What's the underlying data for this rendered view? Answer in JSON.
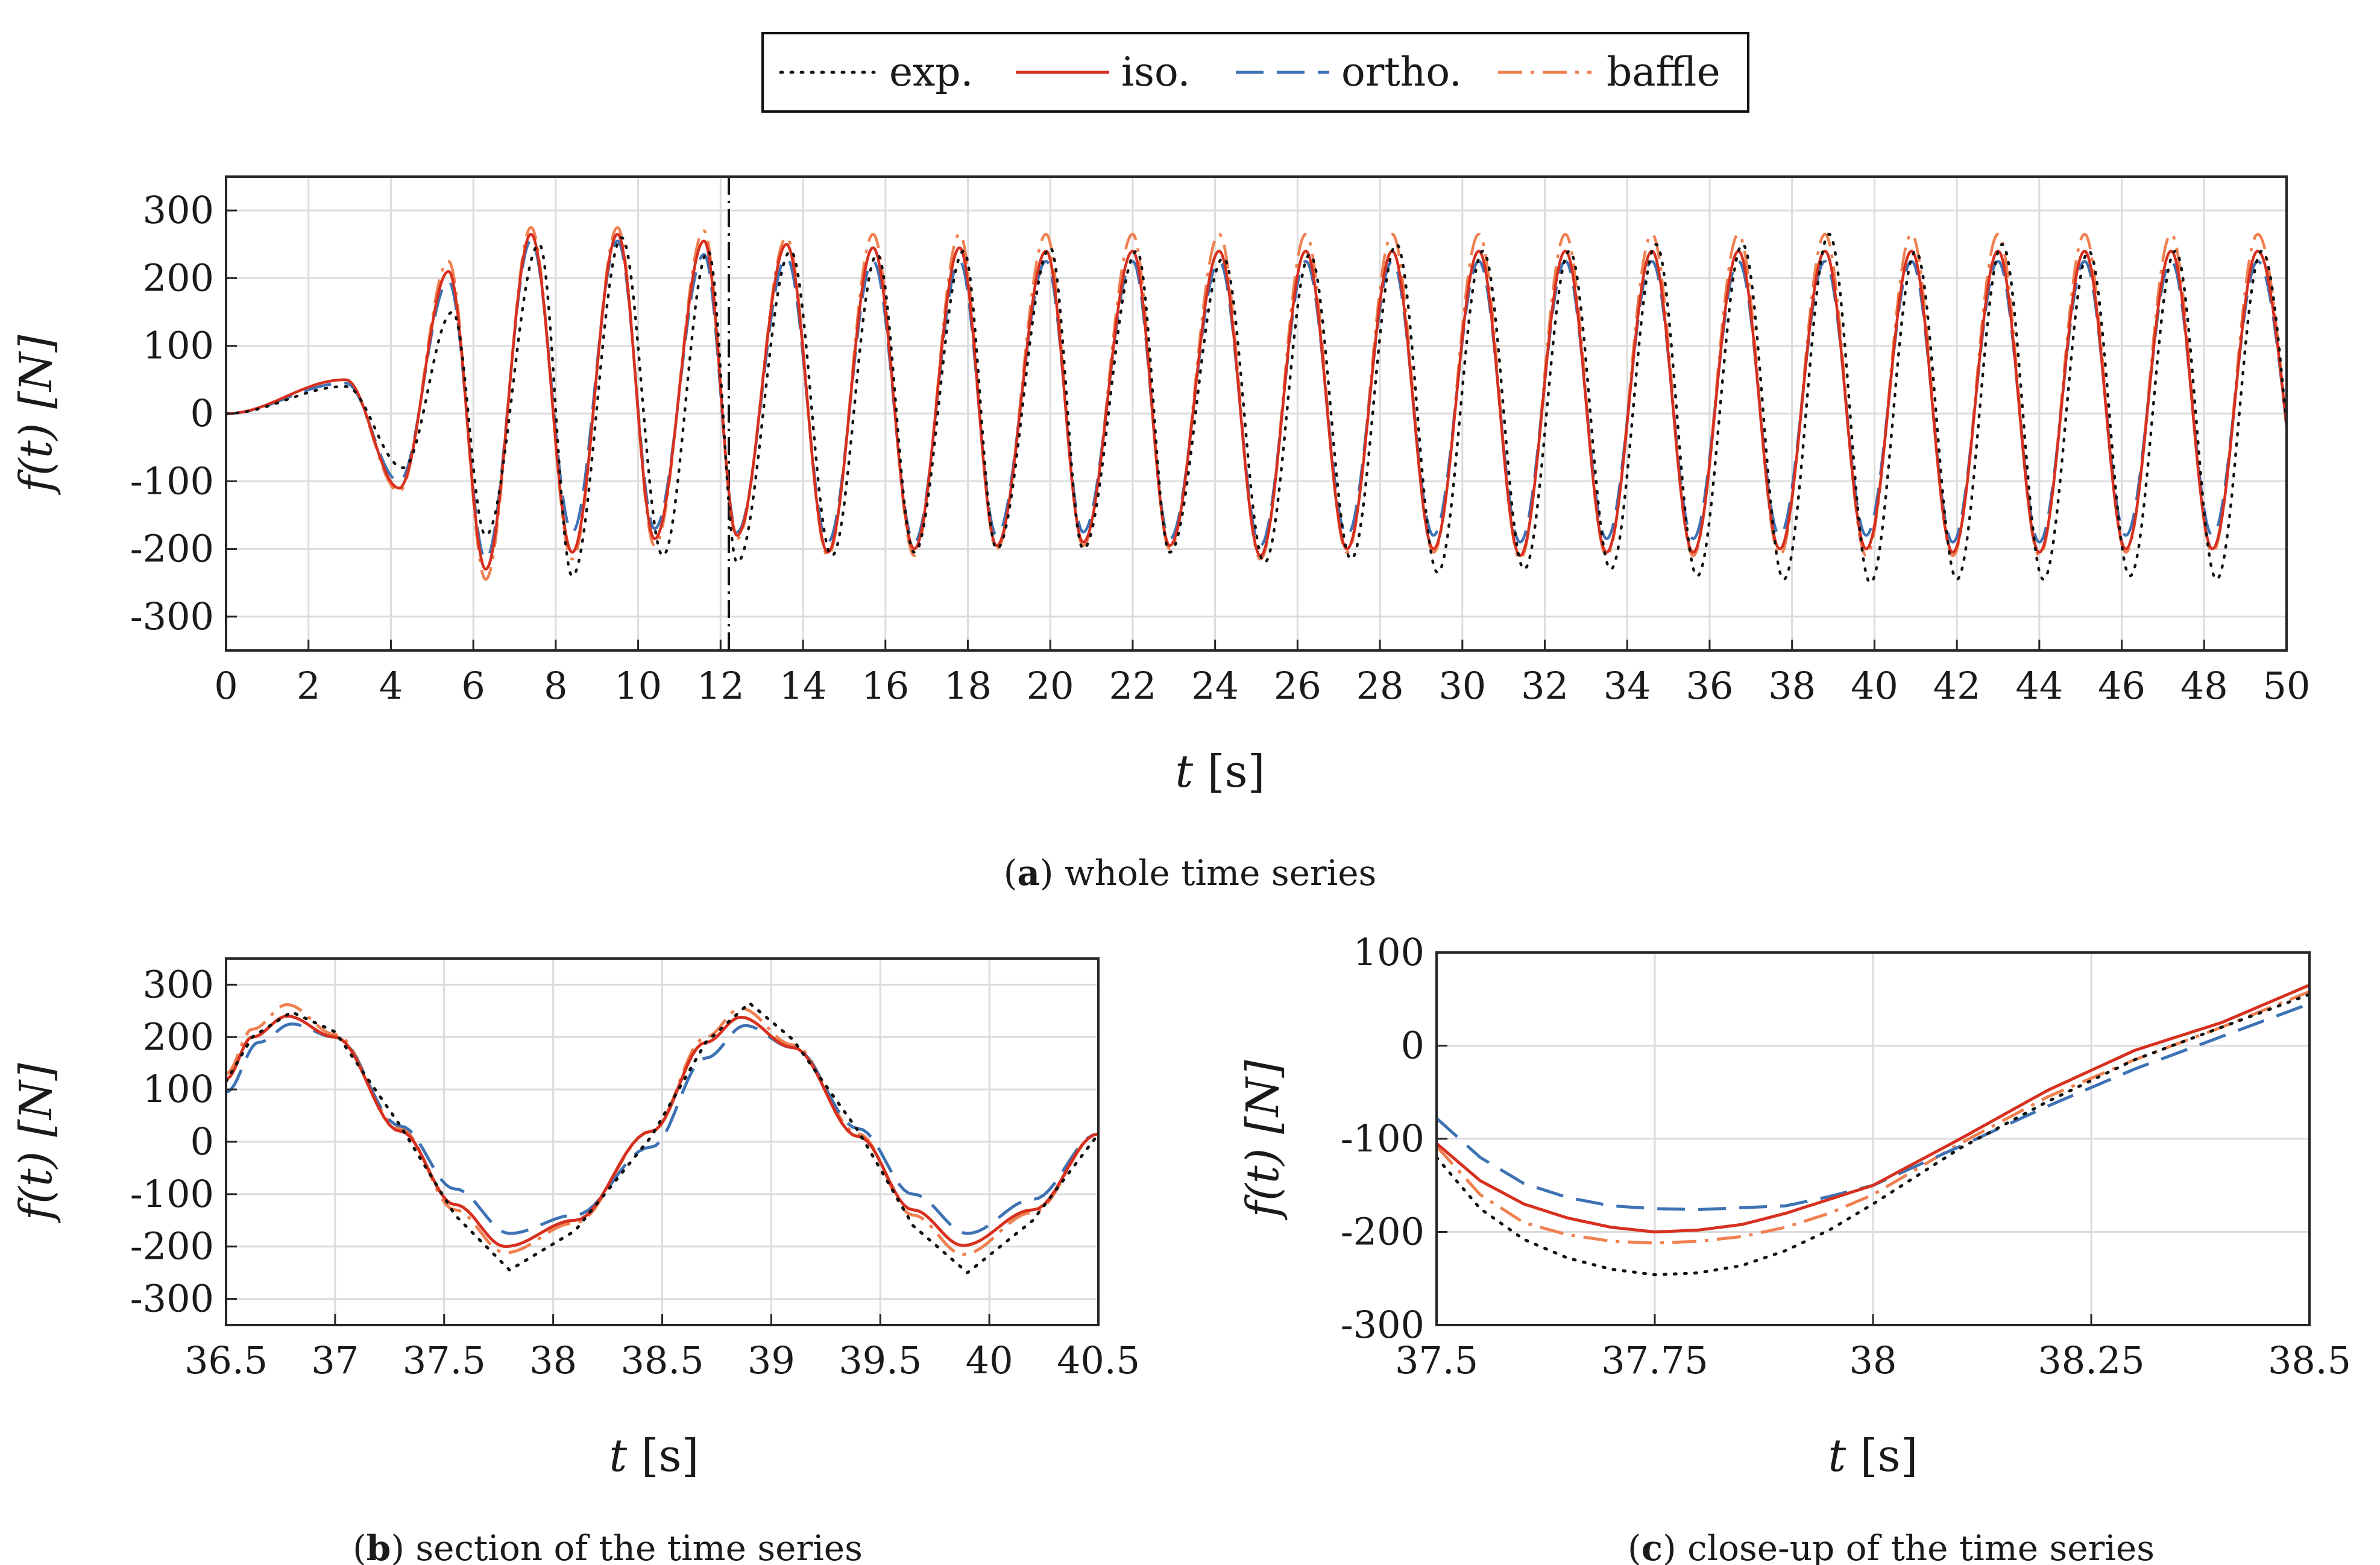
{
  "legend": {
    "entries": [
      {
        "key": "exp",
        "label": "exp.",
        "color": "#111111",
        "dash": "3 14"
      },
      {
        "key": "iso",
        "label": "iso.",
        "color": "#d7301f",
        "dash": ""
      },
      {
        "key": "ortho",
        "label": "ortho.",
        "color": "#3d72b4",
        "dash": "46 22"
      },
      {
        "key": "baffle",
        "label": "baffle",
        "color": "#f08050",
        "dash": "40 14 6 14"
      }
    ]
  },
  "chart_data": [
    {
      "id": "a",
      "type": "line",
      "caption_letter": "a",
      "caption_text": ") whole time series",
      "xlabel_var": "t",
      "xlabel_unit": "[s]",
      "ylabel": "f(t) [N]",
      "xlim": [
        0,
        50
      ],
      "ylim": [
        -350,
        350
      ],
      "xticks": [
        0,
        2,
        4,
        6,
        8,
        10,
        12,
        14,
        16,
        18,
        20,
        22,
        24,
        26,
        28,
        30,
        32,
        34,
        36,
        38,
        40,
        42,
        44,
        46,
        48,
        50
      ],
      "xtick_labels": [
        "0",
        "2",
        "4",
        "6",
        "8",
        "10",
        "12",
        "14",
        "16",
        "18",
        "20",
        "22",
        "24",
        "26",
        "28",
        "30",
        "32",
        "34",
        "36",
        "38",
        "40",
        "42",
        "44",
        "46",
        "48",
        "50"
      ],
      "yticks": [
        300,
        200,
        100,
        0,
        -100,
        -200,
        -300
      ],
      "ytick_labels": [
        "300",
        "200",
        "100",
        "0",
        "-100",
        "-200",
        "-300"
      ],
      "grid": true,
      "vertical_marker_x": 12.2,
      "series": [
        {
          "key": "exp",
          "name": "exp.",
          "peak_times": [
            2.9,
            4.3,
            5.5,
            6.3,
            7.6,
            8.4,
            9.6,
            10.6,
            11.7,
            12.4,
            13.7,
            14.7,
            15.8,
            16.7,
            17.9,
            18.7,
            20.0,
            20.8,
            22.1,
            22.9,
            24.2,
            25.2,
            26.3,
            27.3,
            28.4,
            29.4,
            30.5,
            31.5,
            32.6,
            33.6,
            34.7,
            35.7,
            36.8,
            37.8,
            38.9,
            39.9,
            41.0,
            42.0,
            43.1,
            44.1,
            45.2,
            46.2,
            47.3,
            48.3,
            49.4
          ],
          "peak_values": [
            40,
            -80,
            150,
            -180,
            250,
            -240,
            260,
            -210,
            240,
            -220,
            240,
            -210,
            235,
            -205,
            240,
            -200,
            245,
            -200,
            240,
            -205,
            230,
            -220,
            235,
            -215,
            250,
            -235,
            240,
            -230,
            240,
            -230,
            250,
            -240,
            250,
            -245,
            265,
            -250,
            240,
            -245,
            250,
            -245,
            240,
            -240,
            240,
            -245,
            240
          ]
        },
        {
          "key": "iso",
          "name": "iso.",
          "peak_times": [
            2.9,
            4.2,
            5.4,
            6.3,
            7.4,
            8.4,
            9.5,
            10.4,
            11.6,
            12.4,
            13.6,
            14.6,
            15.7,
            16.7,
            17.8,
            18.7,
            19.9,
            20.8,
            22.0,
            22.9,
            24.1,
            25.1,
            26.2,
            27.2,
            28.3,
            29.3,
            30.4,
            31.4,
            32.5,
            33.5,
            34.6,
            35.6,
            36.7,
            37.7,
            38.8,
            39.8,
            40.9,
            41.9,
            43.0,
            44.0,
            45.1,
            46.1,
            47.2,
            48.2,
            49.3
          ],
          "peak_values": [
            50,
            -110,
            210,
            -230,
            265,
            -205,
            265,
            -185,
            255,
            -180,
            250,
            -205,
            245,
            -200,
            245,
            -195,
            240,
            -190,
            240,
            -195,
            240,
            -210,
            240,
            -200,
            240,
            -200,
            240,
            -210,
            240,
            -205,
            240,
            -205,
            240,
            -200,
            240,
            -200,
            240,
            -205,
            240,
            -205,
            240,
            -200,
            240,
            -200,
            240
          ]
        },
        {
          "key": "ortho",
          "name": "ortho.",
          "peak_times": [
            2.9,
            4.2,
            5.4,
            6.3,
            7.4,
            8.4,
            9.5,
            10.4,
            11.6,
            12.4,
            13.6,
            14.6,
            15.7,
            16.7,
            17.8,
            18.7,
            19.9,
            20.8,
            22.0,
            22.9,
            24.1,
            25.1,
            26.2,
            27.2,
            28.3,
            29.3,
            30.4,
            31.4,
            32.5,
            33.5,
            34.6,
            35.6,
            36.7,
            37.7,
            38.8,
            39.8,
            40.9,
            41.9,
            43.0,
            44.0,
            45.1,
            46.1,
            47.2,
            48.2,
            49.3
          ],
          "peak_values": [
            45,
            -100,
            195,
            -215,
            255,
            -175,
            255,
            -170,
            235,
            -175,
            230,
            -190,
            225,
            -190,
            225,
            -180,
            225,
            -175,
            225,
            -185,
            225,
            -195,
            225,
            -180,
            225,
            -180,
            225,
            -190,
            225,
            -185,
            225,
            -185,
            225,
            -180,
            225,
            -180,
            225,
            -190,
            225,
            -190,
            225,
            -180,
            225,
            -180,
            225
          ]
        },
        {
          "key": "baffle",
          "name": "baffle",
          "peak_times": [
            2.9,
            4.2,
            5.4,
            6.3,
            7.4,
            8.4,
            9.5,
            10.4,
            11.6,
            12.4,
            13.6,
            14.6,
            15.7,
            16.7,
            17.8,
            18.7,
            19.9,
            20.8,
            22.0,
            22.9,
            24.1,
            25.1,
            26.2,
            27.2,
            28.3,
            29.3,
            30.4,
            31.4,
            32.5,
            33.5,
            34.6,
            35.6,
            36.7,
            37.7,
            38.8,
            39.8,
            40.9,
            41.9,
            43.0,
            44.0,
            45.1,
            46.1,
            47.2,
            48.2,
            49.3
          ],
          "peak_values": [
            50,
            -115,
            225,
            -245,
            275,
            -215,
            275,
            -195,
            270,
            -185,
            260,
            -210,
            265,
            -210,
            265,
            -200,
            265,
            -195,
            265,
            -200,
            265,
            -215,
            265,
            -205,
            265,
            -205,
            265,
            -215,
            265,
            -210,
            265,
            -210,
            265,
            -210,
            265,
            -210,
            265,
            -210,
            265,
            -210,
            265,
            -205,
            265,
            -205,
            265
          ]
        }
      ]
    },
    {
      "id": "b",
      "type": "line",
      "caption_letter": "b",
      "caption_text": ") section of the time series",
      "xlabel_var": "t",
      "xlabel_unit": "[s]",
      "ylabel": "f(t) [N]",
      "xlim": [
        36.5,
        40.5
      ],
      "ylim": [
        -350,
        350
      ],
      "xticks": [
        36.5,
        37,
        37.5,
        38,
        38.5,
        39,
        39.5,
        40,
        40.5
      ],
      "xtick_labels": [
        "36.5",
        "37",
        "37.5",
        "38",
        "38.5",
        "39",
        "39.5",
        "40",
        "40.5"
      ],
      "yticks": [
        300,
        200,
        100,
        0,
        -100,
        -200,
        -300
      ],
      "ytick_labels": [
        "300",
        "200",
        "100",
        "0",
        "-100",
        "-200",
        "-300"
      ],
      "grid": true,
      "series": [
        {
          "key": "exp",
          "name": "exp.",
          "x": [
            36.5,
            36.62,
            36.8,
            37.0,
            37.3,
            37.55,
            37.8,
            38.1,
            38.45,
            38.7,
            38.9,
            39.1,
            39.4,
            39.65,
            39.9,
            40.2,
            40.5
          ],
          "y": [
            115,
            200,
            248,
            210,
            30,
            -140,
            -245,
            -170,
            10,
            190,
            265,
            195,
            20,
            -160,
            -250,
            -150,
            15
          ]
        },
        {
          "key": "iso",
          "name": "iso.",
          "x": [
            36.5,
            36.62,
            36.78,
            37.0,
            37.3,
            37.55,
            37.78,
            38.1,
            38.45,
            38.7,
            38.86,
            39.1,
            39.4,
            39.65,
            39.88,
            40.2,
            40.5
          ],
          "y": [
            120,
            200,
            240,
            200,
            20,
            -120,
            -200,
            -150,
            20,
            190,
            238,
            180,
            10,
            -130,
            -198,
            -130,
            15
          ]
        },
        {
          "key": "ortho",
          "name": "ortho.",
          "x": [
            36.5,
            36.65,
            36.8,
            37.0,
            37.3,
            37.55,
            37.8,
            38.1,
            38.45,
            38.7,
            38.88,
            39.1,
            39.4,
            39.65,
            39.9,
            40.2,
            40.5
          ],
          "y": [
            95,
            190,
            225,
            200,
            30,
            -90,
            -175,
            -140,
            -10,
            160,
            222,
            180,
            25,
            -100,
            -175,
            -110,
            15
          ]
        },
        {
          "key": "baffle",
          "name": "baffle",
          "x": [
            36.5,
            36.62,
            36.78,
            37.0,
            37.3,
            37.55,
            37.78,
            38.1,
            38.45,
            38.7,
            38.86,
            39.1,
            39.4,
            39.65,
            39.88,
            40.2,
            40.5
          ],
          "y": [
            130,
            215,
            262,
            205,
            25,
            -130,
            -212,
            -155,
            20,
            200,
            255,
            185,
            15,
            -140,
            -215,
            -135,
            15
          ]
        }
      ]
    },
    {
      "id": "c",
      "type": "line",
      "caption_letter": "c",
      "caption_text": ") close-up of the time series",
      "xlabel_var": "t",
      "xlabel_unit": "[s]",
      "ylabel": "f(t) [N]",
      "xlim": [
        37.5,
        38.5
      ],
      "ylim": [
        -300,
        100
      ],
      "xticks": [
        37.5,
        37.75,
        38,
        38.25,
        38.5
      ],
      "xtick_labels": [
        "37.5",
        "37.75",
        "38",
        "38.25",
        "38.5"
      ],
      "yticks": [
        100,
        0,
        -100,
        -200,
        -300
      ],
      "ytick_labels": [
        "100",
        "0",
        "-100",
        "-200",
        "-300"
      ],
      "grid": true,
      "series": [
        {
          "key": "exp",
          "name": "exp.",
          "x": [
            37.5,
            37.55,
            37.6,
            37.65,
            37.7,
            37.75,
            37.8,
            37.85,
            37.9,
            37.95,
            38.0,
            38.1,
            38.2,
            38.3,
            38.4,
            38.5
          ],
          "y": [
            -120,
            -175,
            -208,
            -228,
            -240,
            -246,
            -244,
            -236,
            -220,
            -198,
            -170,
            -110,
            -60,
            -15,
            20,
            55
          ]
        },
        {
          "key": "iso",
          "name": "iso.",
          "x": [
            37.5,
            37.55,
            37.6,
            37.65,
            37.7,
            37.75,
            37.8,
            37.85,
            37.9,
            37.95,
            38.0,
            38.1,
            38.2,
            38.3,
            38.4,
            38.5
          ],
          "y": [
            -105,
            -145,
            -170,
            -185,
            -195,
            -200,
            -198,
            -192,
            -180,
            -165,
            -150,
            -100,
            -48,
            -5,
            25,
            65
          ]
        },
        {
          "key": "ortho",
          "name": "ortho.",
          "x": [
            37.5,
            37.55,
            37.6,
            37.65,
            37.7,
            37.75,
            37.8,
            37.85,
            37.9,
            37.95,
            38.0,
            38.1,
            38.2,
            38.3,
            38.4,
            38.5
          ],
          "y": [
            -78,
            -120,
            -148,
            -163,
            -172,
            -175,
            -176,
            -174,
            -172,
            -162,
            -150,
            -108,
            -65,
            -25,
            10,
            45
          ]
        },
        {
          "key": "baffle",
          "name": "baffle",
          "x": [
            37.5,
            37.55,
            37.6,
            37.65,
            37.7,
            37.75,
            37.8,
            37.85,
            37.9,
            37.95,
            38.0,
            38.1,
            38.2,
            38.3,
            38.4,
            38.5
          ],
          "y": [
            -108,
            -160,
            -190,
            -203,
            -210,
            -212,
            -210,
            -205,
            -195,
            -180,
            -160,
            -105,
            -55,
            -15,
            20,
            58
          ]
        }
      ]
    }
  ]
}
